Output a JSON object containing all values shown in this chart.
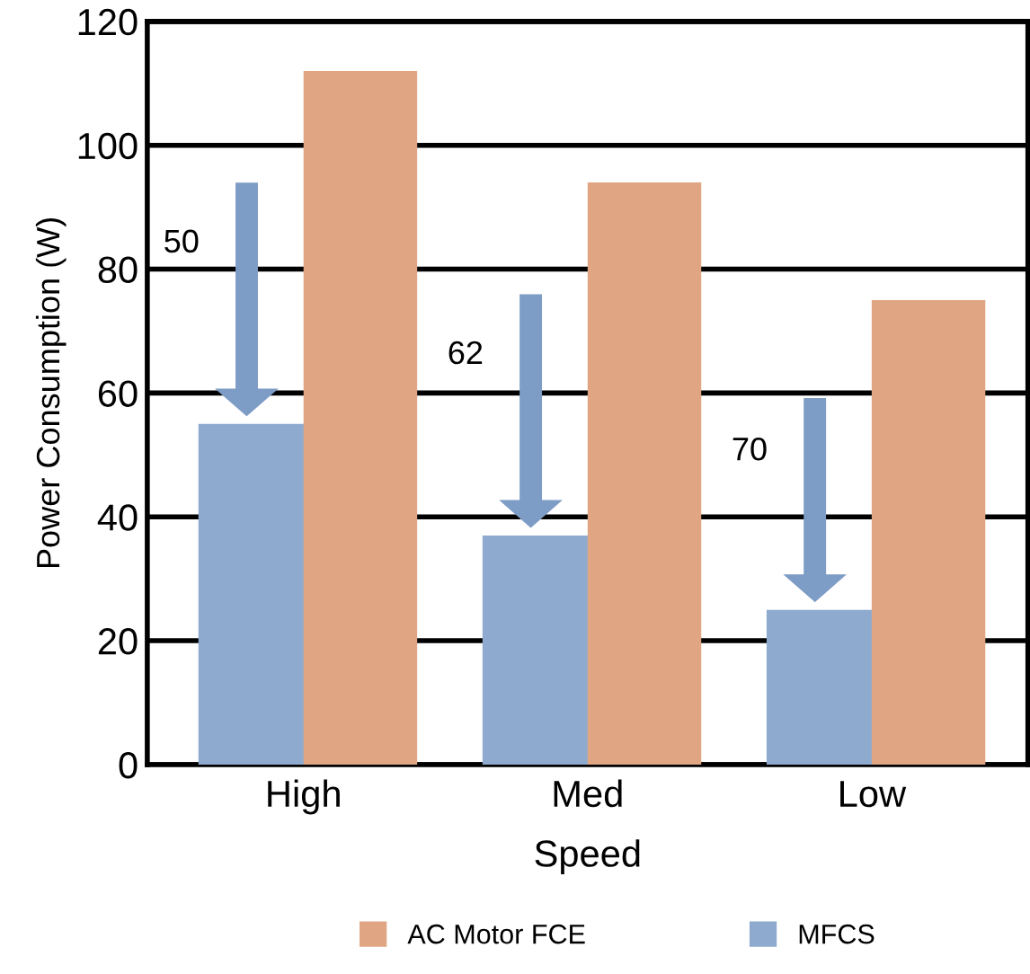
{
  "chart_data": {
    "type": "bar",
    "xlabel": "Speed",
    "ylabel": "Power Consumption (W)",
    "categories": [
      "High",
      "Med",
      "Low"
    ],
    "series": [
      {
        "name": "AC Motor FCE",
        "color": "#e0a684",
        "values": [
          112,
          94,
          75
        ]
      },
      {
        "name": "MFCS",
        "color": "#8eabcf",
        "values": [
          55,
          37,
          25
        ]
      }
    ],
    "ylim": [
      0,
      120
    ],
    "yticks": [
      0,
      20,
      40,
      60,
      80,
      100,
      120
    ],
    "grid": "y",
    "legend": "bottom",
    "annotations": [
      "50",
      "62",
      "70"
    ]
  }
}
